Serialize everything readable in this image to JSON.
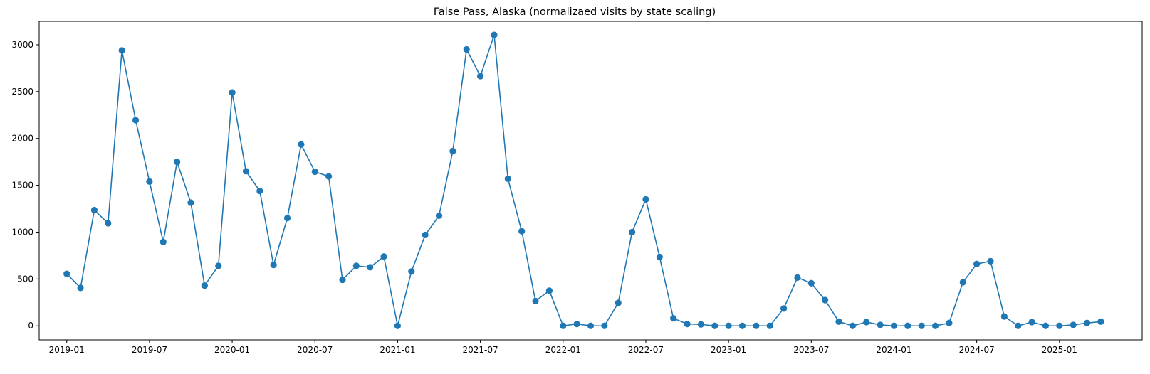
{
  "chart_data": {
    "type": "line",
    "title": "False Pass, Alaska (normalizaed visits by state scaling)",
    "xlabel": "",
    "ylabel": "",
    "x_tick_labels": [
      "2019-01",
      "2019-07",
      "2020-01",
      "2020-07",
      "2021-01",
      "2021-07",
      "2022-01",
      "2022-07",
      "2023-01",
      "2023-07",
      "2024-01",
      "2024-07",
      "2025-01"
    ],
    "y_ticks": [
      0,
      500,
      1000,
      1500,
      2000,
      2500,
      3000
    ],
    "ylim": [
      -150,
      3250
    ],
    "xlim": [
      "2018-11-01",
      "2025-07-01"
    ],
    "grid": false,
    "series": [
      {
        "color": "#1f77b4",
        "marker": "circle",
        "x": [
          "2019-01",
          "2019-02",
          "2019-03",
          "2019-04",
          "2019-05",
          "2019-06",
          "2019-07",
          "2019-08",
          "2019-09",
          "2019-10",
          "2019-11",
          "2019-12",
          "2020-01",
          "2020-02",
          "2020-03",
          "2020-04",
          "2020-05",
          "2020-06",
          "2020-07",
          "2020-08",
          "2020-09",
          "2020-10",
          "2020-11",
          "2020-12",
          "2021-01",
          "2021-02",
          "2021-03",
          "2021-04",
          "2021-05",
          "2021-06",
          "2021-07",
          "2021-08",
          "2021-09",
          "2021-10",
          "2021-11",
          "2021-12",
          "2022-01",
          "2022-02",
          "2022-03",
          "2022-04",
          "2022-05",
          "2022-06",
          "2022-07",
          "2022-08",
          "2022-09",
          "2022-10",
          "2022-11",
          "2022-12",
          "2023-01",
          "2023-02",
          "2023-03",
          "2023-04",
          "2023-05",
          "2023-06",
          "2023-07",
          "2023-08",
          "2023-09",
          "2023-10",
          "2023-11",
          "2023-12",
          "2024-01",
          "2024-02",
          "2024-03",
          "2024-04",
          "2024-05",
          "2024-06",
          "2024-07",
          "2024-08",
          "2024-09",
          "2024-10",
          "2024-11",
          "2024-12",
          "2025-01",
          "2025-02",
          "2025-03",
          "2025-04"
        ],
        "values": [
          555,
          405,
          1235,
          1095,
          2940,
          2195,
          1540,
          895,
          1750,
          1315,
          430,
          640,
          2490,
          1650,
          1440,
          650,
          1150,
          1935,
          1645,
          1595,
          490,
          640,
          625,
          740,
          0,
          580,
          970,
          1175,
          1865,
          2950,
          2665,
          3105,
          1570,
          1010,
          265,
          375,
          0,
          20,
          0,
          0,
          245,
          1000,
          1350,
          735,
          80,
          20,
          15,
          0,
          0,
          0,
          0,
          0,
          185,
          515,
          455,
          275,
          45,
          0,
          40,
          10,
          0,
          0,
          0,
          0,
          30,
          465,
          660,
          690,
          100,
          0,
          40,
          0,
          0,
          10,
          30,
          45
        ]
      }
    ]
  }
}
